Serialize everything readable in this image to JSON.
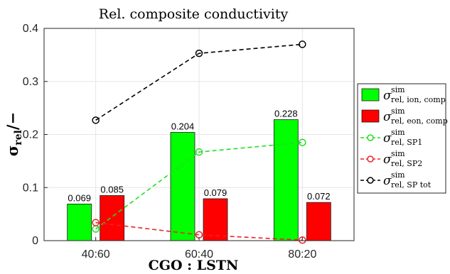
{
  "chart_data": {
    "type": "bar",
    "title": "Rel. composite conductivity",
    "xlabel": "CGO : LSTN",
    "ylabel": "σrel/−",
    "categories": [
      "40:60",
      "60:40",
      "80:20"
    ],
    "ylim": [
      0,
      0.4
    ],
    "yticks": [
      "0",
      "0.1",
      "0.2",
      "0.3",
      "0.4"
    ],
    "grid": true,
    "legend_position": "right",
    "bar_series": [
      {
        "name": "σ sim rel, ion, comp",
        "sup": "sim",
        "sub": "rel, ion, comp",
        "color": "#00ff00",
        "values": [
          0.069,
          0.204,
          0.228
        ],
        "labels": [
          "0.069",
          "0.204",
          "0.228"
        ]
      },
      {
        "name": "σ sim rel, eon, comp",
        "sup": "sim",
        "sub": "rel, eon, comp",
        "color": "#ff0000",
        "values": [
          0.085,
          0.079,
          0.072
        ],
        "labels": [
          "0.085",
          "0.079",
          "0.072"
        ]
      }
    ],
    "line_series": [
      {
        "name": "σ sim rel, SP1",
        "sup": "sim",
        "sub": "rel, SP1",
        "color": "#22dd22",
        "values": [
          0.022,
          0.167,
          0.185
        ]
      },
      {
        "name": "σ sim rel, SP2",
        "sup": "sim",
        "sub": "rel, SP2",
        "color": "#ee2222",
        "values": [
          0.034,
          0.011,
          0.001
        ]
      },
      {
        "name": "σ sim rel, SP tot",
        "sup": "sim",
        "sub": "rel, SP tot",
        "color": "#000000",
        "values": [
          0.227,
          0.353,
          0.37
        ]
      }
    ]
  }
}
